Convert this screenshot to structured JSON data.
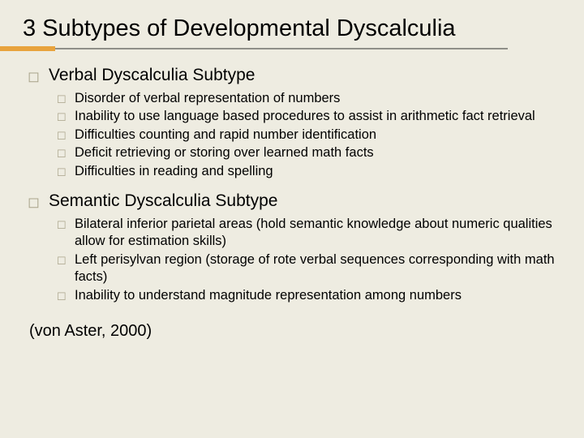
{
  "title": "3 Subtypes of Developmental Dyscalculia",
  "colors": {
    "background": "#eeece1",
    "accent_orange": "#e8a33d",
    "accent_line": "#8f8f88",
    "bullet": "#a9a48a",
    "text": "#000000"
  },
  "typography": {
    "title_fontsize": 29,
    "section_fontsize": 21,
    "body_fontsize": 16.5,
    "citation_fontsize": 20,
    "font_family": "Arial"
  },
  "sections": [
    {
      "title": "Verbal Dyscalculia Subtype",
      "items": [
        "Disorder of verbal representation of numbers",
        "Inability to use language based procedures to assist in arithmetic fact retrieval",
        "Difficulties counting and rapid number identification",
        "Deficit retrieving or storing over learned math facts",
        "Difficulties in reading and spelling"
      ]
    },
    {
      "title": "Semantic Dyscalculia Subtype",
      "items": [
        "Bilateral inferior parietal areas (hold semantic knowledge about numeric qualities allow for estimation skills)",
        "Left perisylvan region (storage of rote verbal sequences corresponding with math facts)",
        "Inability to understand magnitude representation among numbers"
      ]
    }
  ],
  "citation": "(von Aster, 2000)",
  "glyphs": {
    "main_bullet": "◻",
    "sub_bullet": "☐"
  }
}
